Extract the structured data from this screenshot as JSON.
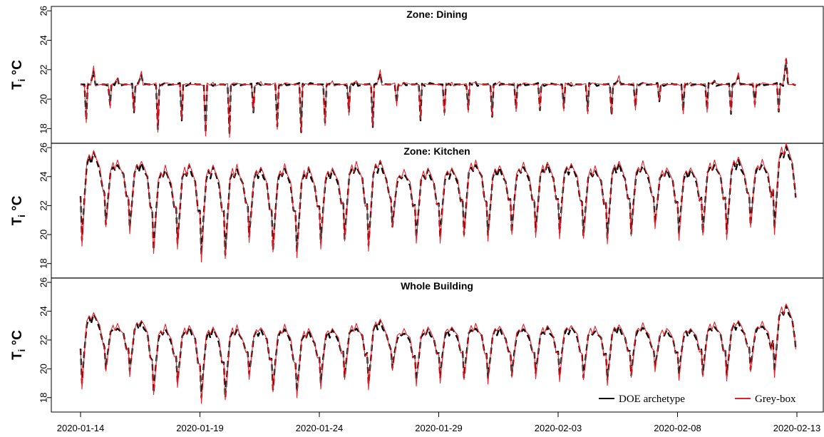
{
  "colors": {
    "doe": "#000000",
    "grey_box": "#e8202a",
    "frame": "#000000"
  },
  "chart_data": [
    {
      "type": "line",
      "title": "Zone: Dining",
      "ylabel": "T",
      "ylabel_sub": "i",
      "ylabel_unit": "°C",
      "ylim": [
        17,
        26.3
      ],
      "yticks": [
        18,
        20,
        22,
        24,
        26
      ],
      "xlim": [
        "2020-01-14",
        "2020-02-13"
      ],
      "series": [
        {
          "name": "DOE archetype",
          "x": [
            "2020-01-14",
            "2020-01-15",
            "2020-01-16",
            "2020-01-17",
            "2020-01-18",
            "2020-01-19",
            "2020-01-20",
            "2020-01-21",
            "2020-01-22",
            "2020-01-23",
            "2020-01-24",
            "2020-01-25",
            "2020-01-26",
            "2020-01-27",
            "2020-01-28",
            "2020-01-29",
            "2020-01-30",
            "2020-01-31",
            "2020-02-01",
            "2020-02-02",
            "2020-02-03",
            "2020-02-04",
            "2020-02-05",
            "2020-02-06",
            "2020-02-07",
            "2020-02-08",
            "2020-02-09",
            "2020-02-10",
            "2020-02-11",
            "2020-02-12"
          ],
          "daily_min": [
            18.5,
            19.6,
            19.2,
            17.9,
            18.6,
            17.6,
            17.6,
            19.2,
            18.1,
            17.8,
            18.3,
            19.1,
            18.2,
            19.7,
            18.6,
            19.0,
            19.3,
            18.9,
            19.3,
            19.3,
            19.3,
            19.2,
            19.0,
            19.4,
            19.9,
            19.1,
            19.3,
            19.1,
            19.6,
            19.2
          ],
          "daily_peak": [
            22.0,
            21.4,
            21.7,
            21.0,
            21.0,
            21.0,
            21.0,
            21.0,
            21.0,
            21.0,
            21.1,
            21.2,
            21.8,
            21.0,
            21.0,
            21.0,
            21.1,
            21.0,
            21.0,
            21.0,
            21.0,
            21.0,
            21.4,
            21.0,
            21.0,
            21.0,
            21.2,
            21.6,
            21.0,
            22.7
          ]
        },
        {
          "name": "Grey-box",
          "x": [
            "2020-01-14",
            "2020-01-15",
            "2020-01-16",
            "2020-01-17",
            "2020-01-18",
            "2020-01-19",
            "2020-01-20",
            "2020-01-21",
            "2020-01-22",
            "2020-01-23",
            "2020-01-24",
            "2020-01-25",
            "2020-01-26",
            "2020-01-27",
            "2020-01-28",
            "2020-01-29",
            "2020-01-30",
            "2020-01-31",
            "2020-02-01",
            "2020-02-02",
            "2020-02-03",
            "2020-02-04",
            "2020-02-05",
            "2020-02-06",
            "2020-02-07",
            "2020-02-08",
            "2020-02-09",
            "2020-02-10",
            "2020-02-11",
            "2020-02-12"
          ],
          "daily_min": [
            18.4,
            19.5,
            19.1,
            17.8,
            18.5,
            17.5,
            17.5,
            19.1,
            18.0,
            17.7,
            18.2,
            19.0,
            18.1,
            19.6,
            18.5,
            18.9,
            19.2,
            18.8,
            19.2,
            19.2,
            19.2,
            19.1,
            18.9,
            19.3,
            19.8,
            19.0,
            19.2,
            19.0,
            19.5,
            19.1
          ],
          "daily_peak": [
            22.2,
            21.5,
            21.8,
            21.1,
            21.1,
            21.1,
            21.1,
            21.1,
            21.1,
            21.1,
            21.2,
            21.3,
            21.9,
            21.1,
            21.1,
            21.1,
            21.2,
            21.1,
            21.1,
            21.1,
            21.1,
            21.1,
            21.5,
            21.1,
            21.1,
            21.1,
            21.3,
            21.7,
            21.1,
            22.9
          ]
        }
      ]
    },
    {
      "type": "line",
      "title": "Zone: Kitchen",
      "ylabel": "T",
      "ylabel_sub": "i",
      "ylabel_unit": "°C",
      "ylim": [
        17,
        26.3
      ],
      "yticks": [
        18,
        20,
        22,
        24,
        26
      ],
      "xlim": [
        "2020-01-14",
        "2020-02-13"
      ],
      "series": [
        {
          "name": "DOE archetype",
          "x": [
            "2020-01-14",
            "2020-01-15",
            "2020-01-16",
            "2020-01-17",
            "2020-01-18",
            "2020-01-19",
            "2020-01-20",
            "2020-01-21",
            "2020-01-22",
            "2020-01-23",
            "2020-01-24",
            "2020-01-25",
            "2020-01-26",
            "2020-01-27",
            "2020-01-28",
            "2020-01-29",
            "2020-01-30",
            "2020-01-31",
            "2020-02-01",
            "2020-02-02",
            "2020-02-03",
            "2020-02-04",
            "2020-02-05",
            "2020-02-06",
            "2020-02-07",
            "2020-02-08",
            "2020-02-09",
            "2020-02-10",
            "2020-02-11",
            "2020-02-12"
          ],
          "daily_min": [
            19.6,
            20.8,
            20.4,
            19.0,
            19.3,
            18.6,
            18.7,
            19.8,
            19.0,
            18.7,
            19.4,
            19.8,
            19.2,
            20.6,
            19.7,
            19.8,
            20.1,
            19.9,
            20.2,
            20.1,
            20.1,
            20.0,
            19.7,
            20.1,
            20.7,
            20.0,
            20.2,
            20.0,
            20.7,
            20.3
          ],
          "daily_peak": [
            25.7,
            24.9,
            24.9,
            24.5,
            24.7,
            24.7,
            24.6,
            24.5,
            24.6,
            24.5,
            24.5,
            24.8,
            25.0,
            24.2,
            24.4,
            24.5,
            24.9,
            24.6,
            24.7,
            24.8,
            24.8,
            24.5,
            24.9,
            24.8,
            24.4,
            24.5,
            24.9,
            25.1,
            24.9,
            26.0
          ]
        },
        {
          "name": "Grey-box",
          "x": [
            "2020-01-14",
            "2020-01-15",
            "2020-01-16",
            "2020-01-17",
            "2020-01-18",
            "2020-01-19",
            "2020-01-20",
            "2020-01-21",
            "2020-01-22",
            "2020-01-23",
            "2020-01-24",
            "2020-01-25",
            "2020-01-26",
            "2020-01-27",
            "2020-01-28",
            "2020-01-29",
            "2020-01-30",
            "2020-01-31",
            "2020-02-01",
            "2020-02-02",
            "2020-02-03",
            "2020-02-04",
            "2020-02-05",
            "2020-02-06",
            "2020-02-07",
            "2020-02-08",
            "2020-02-09",
            "2020-02-10",
            "2020-02-11",
            "2020-02-12"
          ],
          "daily_min": [
            19.3,
            20.5,
            20.1,
            18.6,
            19.0,
            18.2,
            18.3,
            19.5,
            18.7,
            18.4,
            19.1,
            19.5,
            18.9,
            20.4,
            19.4,
            19.5,
            19.8,
            19.6,
            19.9,
            19.8,
            19.8,
            19.7,
            19.4,
            19.8,
            20.4,
            19.7,
            19.9,
            19.7,
            20.4,
            20.0
          ],
          "daily_peak": [
            25.9,
            25.1,
            25.1,
            24.7,
            24.9,
            24.9,
            24.8,
            24.7,
            24.8,
            24.7,
            24.7,
            25.0,
            25.2,
            24.4,
            24.6,
            24.7,
            25.1,
            24.8,
            24.9,
            25.0,
            25.0,
            24.7,
            25.1,
            25.0,
            24.6,
            24.7,
            25.1,
            25.4,
            25.1,
            26.3
          ]
        }
      ]
    },
    {
      "type": "line",
      "title": "Whole Building",
      "ylabel": "T",
      "ylabel_sub": "i",
      "ylabel_unit": "°C",
      "ylim": [
        17,
        26.3
      ],
      "yticks": [
        18,
        20,
        22,
        24,
        26
      ],
      "xlim": [
        "2020-01-14",
        "2020-02-13"
      ],
      "xticks": [
        "2020-01-14",
        "2020-01-19",
        "2020-01-24",
        "2020-01-29",
        "2020-02-03",
        "2020-02-08",
        "2020-02-13"
      ],
      "legend_position": "bottom-right",
      "series": [
        {
          "name": "DOE archetype",
          "x": [
            "2020-01-14",
            "2020-01-15",
            "2020-01-16",
            "2020-01-17",
            "2020-01-18",
            "2020-01-19",
            "2020-01-20",
            "2020-01-21",
            "2020-01-22",
            "2020-01-23",
            "2020-01-24",
            "2020-01-25",
            "2020-01-26",
            "2020-01-27",
            "2020-01-28",
            "2020-01-29",
            "2020-01-30",
            "2020-01-31",
            "2020-02-01",
            "2020-02-02",
            "2020-02-03",
            "2020-02-04",
            "2020-02-05",
            "2020-02-06",
            "2020-02-07",
            "2020-02-08",
            "2020-02-09",
            "2020-02-10",
            "2020-02-11",
            "2020-02-12"
          ],
          "daily_min": [
            19.0,
            20.1,
            19.8,
            18.4,
            19.0,
            18.0,
            18.1,
            19.6,
            18.6,
            18.3,
            19.0,
            19.5,
            18.9,
            20.1,
            19.1,
            19.4,
            19.5,
            19.3,
            19.6,
            19.6,
            19.5,
            19.5,
            19.2,
            19.6,
            20.1,
            19.6,
            19.7,
            19.5,
            20.0,
            19.7
          ],
          "daily_peak": [
            23.8,
            22.9,
            23.2,
            22.8,
            22.8,
            22.8,
            22.8,
            22.7,
            22.8,
            22.6,
            22.7,
            22.9,
            23.3,
            22.5,
            22.7,
            22.8,
            22.9,
            22.8,
            22.8,
            22.8,
            22.9,
            22.7,
            22.9,
            22.9,
            22.6,
            22.7,
            23.0,
            23.2,
            23.0,
            24.3
          ]
        },
        {
          "name": "Grey-box",
          "x": [
            "2020-01-14",
            "2020-01-15",
            "2020-01-16",
            "2020-01-17",
            "2020-01-18",
            "2020-01-19",
            "2020-01-20",
            "2020-01-21",
            "2020-01-22",
            "2020-01-23",
            "2020-01-24",
            "2020-01-25",
            "2020-01-26",
            "2020-01-27",
            "2020-01-28",
            "2020-01-29",
            "2020-01-30",
            "2020-01-31",
            "2020-02-01",
            "2020-02-02",
            "2020-02-03",
            "2020-02-04",
            "2020-02-05",
            "2020-02-06",
            "2020-02-07",
            "2020-02-08",
            "2020-02-09",
            "2020-02-10",
            "2020-02-11",
            "2020-02-12"
          ],
          "daily_min": [
            18.7,
            19.8,
            19.5,
            18.1,
            18.7,
            17.7,
            17.8,
            19.3,
            18.3,
            18.0,
            18.7,
            19.2,
            18.6,
            19.8,
            18.8,
            19.1,
            19.2,
            19.0,
            19.3,
            19.3,
            19.2,
            19.2,
            18.9,
            19.3,
            19.8,
            19.3,
            19.4,
            19.2,
            19.7,
            19.4
          ],
          "daily_peak": [
            24.0,
            23.1,
            23.4,
            23.0,
            23.0,
            23.0,
            23.0,
            22.9,
            23.0,
            22.8,
            22.9,
            23.1,
            23.5,
            22.7,
            22.9,
            23.0,
            23.1,
            23.0,
            23.0,
            23.0,
            23.1,
            22.9,
            23.1,
            23.1,
            22.8,
            22.9,
            23.2,
            23.4,
            23.2,
            24.5
          ]
        }
      ]
    }
  ]
}
